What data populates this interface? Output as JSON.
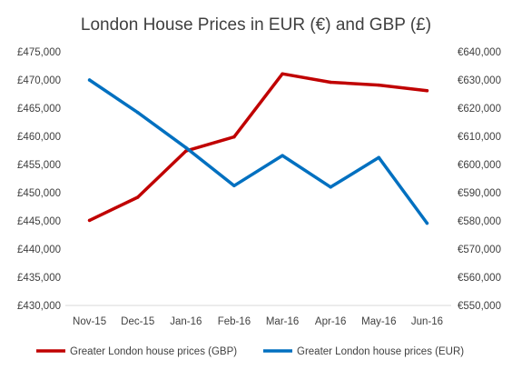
{
  "chart_data": {
    "type": "line",
    "title": "London House Prices in EUR (€) and GBP (£)",
    "categories": [
      "Nov-15",
      "Dec-15",
      "Jan-16",
      "Feb-16",
      "Mar-16",
      "Apr-16",
      "May-16",
      "Jun-16"
    ],
    "y_left": {
      "ylim": [
        430000,
        475000
      ],
      "step": 5000,
      "tick_labels": [
        "£430,000",
        "£435,000",
        "£440,000",
        "£445,000",
        "£450,000",
        "£455,000",
        "£460,000",
        "£465,000",
        "£470,000",
        "£475,000"
      ]
    },
    "y_right": {
      "ylim": [
        550000,
        640000
      ],
      "step": 10000,
      "tick_labels": [
        "€550,000",
        "€560,000",
        "€570,000",
        "€580,000",
        "€590,000",
        "€600,000",
        "€610,000",
        "€620,000",
        "€630,000",
        "€640,000"
      ]
    },
    "series": [
      {
        "name": "Greater London house prices (GBP)",
        "axis": "left",
        "color": "#c00000",
        "values": [
          445100,
          449200,
          457400,
          459900,
          471100,
          469600,
          469100,
          468100
        ]
      },
      {
        "name": "Greater London house prices (EUR)",
        "axis": "right",
        "color": "#0070c0",
        "values": [
          630000,
          618500,
          606000,
          592500,
          603200,
          592000,
          602500,
          579200
        ]
      }
    ],
    "grid": false,
    "legend_position": "bottom"
  }
}
